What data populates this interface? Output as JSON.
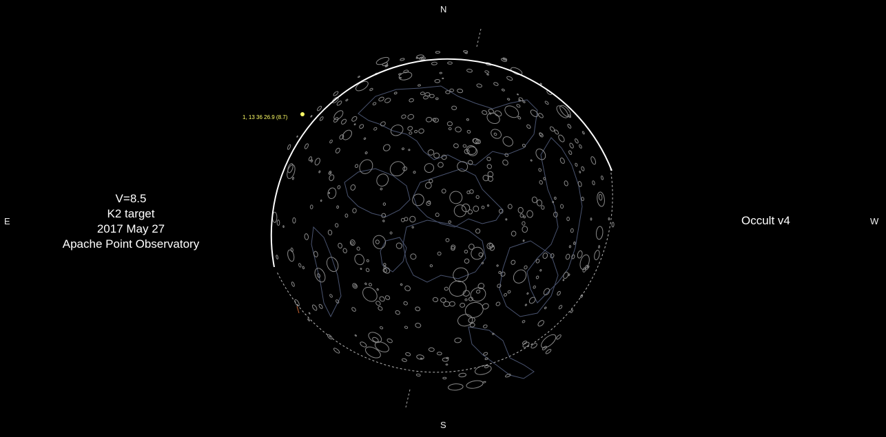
{
  "compass": {
    "north": "N",
    "south": "S",
    "east": "E",
    "west": "W"
  },
  "event_info": {
    "magnitude": "V=8.5",
    "target": "K2 target",
    "date": "2017 May 27",
    "observatory": "Apache Point Observatory"
  },
  "app_label": "Occult v4",
  "star": {
    "label": "1, 13 36 26.9 (8.7)",
    "color": "#ffff66"
  },
  "colors": {
    "background": "#000000",
    "limb": "#ffffff",
    "craters": "#8a8a8a",
    "maria": "#4a5470"
  }
}
